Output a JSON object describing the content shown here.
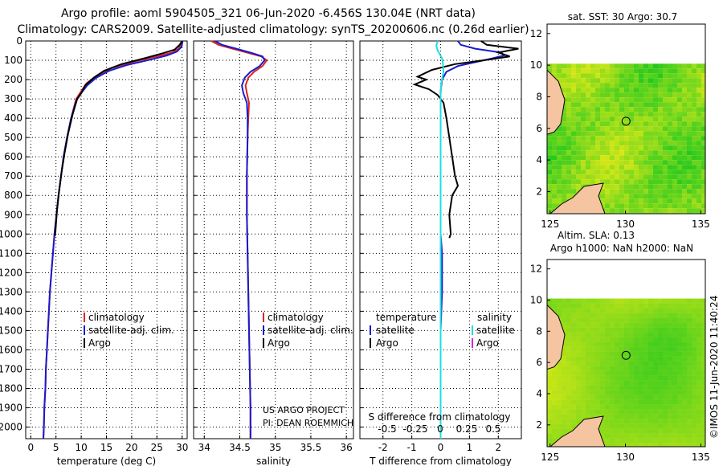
{
  "header": {
    "line1": "Argo profile: aoml 5904505_321 06-Jun-2020 -6.456S 130.04E (NRT data)",
    "line2": "Climatology: CARS2009. Satellite-adjusted climatology: synTS_20200606.nc (0.26d earlier)"
  },
  "colors": {
    "climatology": "#dd2222",
    "satellite": "#1a1acc",
    "argo": "#000000",
    "sat_salinity": "#22dddd",
    "argo_salinity": "#dd22dd",
    "land": "#f5c4a0",
    "ocean_low": "#22c81e",
    "ocean_high": "#f0ec1e"
  },
  "watermark": "©IMOS 11-Jun-2020 11:40:24",
  "chart_data": [
    {
      "type": "line",
      "id": "temperature",
      "xlabel": "temperature (deg C)",
      "ylabel": "depth",
      "xlim": [
        -1,
        31
      ],
      "ylim": [
        2060,
        0
      ],
      "xticks": [
        0,
        5,
        10,
        15,
        20,
        25,
        30
      ],
      "yticks": [
        0,
        100,
        200,
        300,
        400,
        500,
        600,
        700,
        800,
        900,
        1000,
        1100,
        1200,
        1300,
        1400,
        1500,
        1600,
        1700,
        1800,
        1900,
        2000
      ],
      "legend": [
        "climatology",
        "satellite-adj. clim.",
        "Argo"
      ],
      "series": [
        {
          "name": "climatology",
          "color": "#dd2222",
          "points": [
            [
              29.9,
              0
            ],
            [
              29.7,
              20
            ],
            [
              29.3,
              40
            ],
            [
              28,
              60
            ],
            [
              25,
              80
            ],
            [
              20,
              110
            ],
            [
              16,
              140
            ],
            [
              13,
              180
            ],
            [
              11,
              220
            ],
            [
              10,
              260
            ],
            [
              9,
              300
            ],
            [
              8,
              400
            ],
            [
              7.2,
              500
            ],
            [
              6.5,
              600
            ],
            [
              6,
              700
            ],
            [
              5.5,
              800
            ],
            [
              5.1,
              900
            ],
            [
              4.7,
              1000
            ],
            [
              4.4,
              1100
            ],
            [
              4.1,
              1200
            ],
            [
              3.8,
              1300
            ],
            [
              3.6,
              1400
            ],
            [
              3.4,
              1500
            ],
            [
              3.2,
              1600
            ],
            [
              3,
              1700
            ],
            [
              2.9,
              1800
            ],
            [
              2.7,
              1900
            ],
            [
              2.6,
              2000
            ],
            [
              2.5,
              2060
            ]
          ]
        },
        {
          "name": "satellite-adj. clim.",
          "color": "#1a1acc",
          "points": [
            [
              30.1,
              0
            ],
            [
              29.9,
              30
            ],
            [
              29,
              55
            ],
            [
              27,
              75
            ],
            [
              24,
              95
            ],
            [
              19,
              125
            ],
            [
              15.5,
              155
            ],
            [
              13,
              190
            ],
            [
              11.2,
              230
            ],
            [
              10,
              270
            ],
            [
              9,
              310
            ],
            [
              8,
              400
            ],
            [
              7.2,
              500
            ],
            [
              6.5,
              600
            ],
            [
              6,
              700
            ],
            [
              5.5,
              800
            ],
            [
              5.1,
              900
            ],
            [
              4.7,
              1000
            ],
            [
              4.4,
              1100
            ],
            [
              4.1,
              1200
            ],
            [
              3.8,
              1300
            ],
            [
              3.6,
              1400
            ],
            [
              3.4,
              1500
            ],
            [
              3.2,
              1600
            ],
            [
              3,
              1700
            ],
            [
              2.9,
              1800
            ],
            [
              2.7,
              1900
            ],
            [
              2.6,
              2000
            ],
            [
              2.5,
              2060
            ]
          ]
        },
        {
          "name": "Argo",
          "color": "#000000",
          "points": [
            [
              30,
              0
            ],
            [
              29.5,
              20
            ],
            [
              28.5,
              45
            ],
            [
              26,
              65
            ],
            [
              22.5,
              90
            ],
            [
              18,
              120
            ],
            [
              14.5,
              155
            ],
            [
              12.5,
              190
            ],
            [
              10.8,
              230
            ],
            [
              10,
              270
            ],
            [
              9.2,
              300
            ],
            [
              8.3,
              380
            ],
            [
              7.4,
              480
            ],
            [
              6.7,
              580
            ],
            [
              6.1,
              680
            ],
            [
              5.6,
              780
            ],
            [
              5.2,
              880
            ],
            [
              4.9,
              980
            ],
            [
              4.8,
              1010
            ]
          ]
        }
      ]
    },
    {
      "type": "line",
      "id": "salinity",
      "xlabel": "salinity",
      "xlim": [
        33.85,
        36.1
      ],
      "ylim": [
        2060,
        0
      ],
      "xticks": [
        34,
        34.5,
        35,
        35.5,
        36
      ],
      "legend": [
        "climatology",
        "satellite-adj. clim.",
        "Argo"
      ],
      "annotations": [
        "US ARGO PROJECT",
        "PI: DEAN ROEMMICH"
      ],
      "series": [
        {
          "name": "climatology",
          "color": "#dd2222",
          "points": [
            [
              34.1,
              0
            ],
            [
              34.2,
              20
            ],
            [
              34.4,
              40
            ],
            [
              34.6,
              60
            ],
            [
              34.8,
              80
            ],
            [
              34.88,
              100
            ],
            [
              34.82,
              130
            ],
            [
              34.7,
              160
            ],
            [
              34.62,
              190
            ],
            [
              34.58,
              230
            ],
            [
              34.6,
              270
            ],
            [
              34.63,
              320
            ],
            [
              34.62,
              400
            ],
            [
              34.61,
              500
            ],
            [
              34.6,
              700
            ],
            [
              34.6,
              900
            ],
            [
              34.61,
              1100
            ],
            [
              34.62,
              1300
            ],
            [
              34.63,
              1500
            ],
            [
              34.64,
              1700
            ],
            [
              34.65,
              1900
            ],
            [
              34.65,
              2060
            ]
          ]
        },
        {
          "name": "satellite-adj. clim.",
          "color": "#1a1acc",
          "points": [
            [
              34.15,
              0
            ],
            [
              34.25,
              20
            ],
            [
              34.45,
              40
            ],
            [
              34.65,
              60
            ],
            [
              34.82,
              80
            ],
            [
              34.85,
              100
            ],
            [
              34.78,
              130
            ],
            [
              34.65,
              160
            ],
            [
              34.57,
              190
            ],
            [
              34.53,
              230
            ],
            [
              34.55,
              270
            ],
            [
              34.6,
              320
            ],
            [
              34.61,
              400
            ],
            [
              34.61,
              500
            ],
            [
              34.6,
              700
            ],
            [
              34.6,
              900
            ],
            [
              34.61,
              1100
            ],
            [
              34.62,
              1300
            ],
            [
              34.63,
              1500
            ],
            [
              34.64,
              1700
            ],
            [
              34.65,
              1900
            ],
            [
              34.65,
              2060
            ]
          ]
        }
      ]
    },
    {
      "type": "line",
      "id": "difference",
      "xlabel": "T difference from climatology",
      "xlim": [
        -2.8,
        2.8
      ],
      "ylim": [
        2060,
        0
      ],
      "xticks": [
        -2,
        -1,
        0,
        1,
        2
      ],
      "secondary_xlabel": "S difference from climatology",
      "secondary_xticks": [
        "-0.5",
        "-0.25",
        "0",
        "0.25",
        "0.5"
      ],
      "legend": {
        "temperature": [
          "satellite",
          "Argo"
        ],
        "salinity": [
          "satellite",
          "Argo"
        ]
      },
      "series": [
        {
          "name": "T satellite",
          "color": "#1a1acc",
          "points": [
            [
              0.6,
              0
            ],
            [
              0.7,
              20
            ],
            [
              1.2,
              40
            ],
            [
              2.1,
              60
            ],
            [
              2.2,
              75
            ],
            [
              1.8,
              90
            ],
            [
              1.2,
              110
            ],
            [
              0.6,
              130
            ],
            [
              0.2,
              160
            ],
            [
              0.05,
              200
            ],
            [
              0,
              260
            ],
            [
              0,
              400
            ],
            [
              0,
              800
            ],
            [
              0,
              1000
            ],
            [
              0.05,
              1100
            ],
            [
              0.05,
              1300
            ],
            [
              0,
              1500
            ],
            [
              0,
              2060
            ]
          ]
        },
        {
          "name": "T Argo",
          "color": "#000000",
          "points": [
            [
              1.4,
              0
            ],
            [
              1.6,
              20
            ],
            [
              2.7,
              40
            ],
            [
              2.0,
              60
            ],
            [
              2.4,
              80
            ],
            [
              1.5,
              100
            ],
            [
              0.5,
              120
            ],
            [
              -0.3,
              150
            ],
            [
              -0.8,
              185
            ],
            [
              -0.5,
              200
            ],
            [
              -0.9,
              225
            ],
            [
              -0.4,
              250
            ],
            [
              -0.1,
              280
            ],
            [
              0.1,
              320
            ],
            [
              0.2,
              400
            ],
            [
              0.3,
              500
            ],
            [
              0.4,
              600
            ],
            [
              0.5,
              700
            ],
            [
              0.6,
              750
            ],
            [
              0.4,
              800
            ],
            [
              0.3,
              900
            ],
            [
              0.35,
              1000
            ],
            [
              0.3,
              1020
            ]
          ]
        },
        {
          "name": "S satellite",
          "color": "#22dddd",
          "points": [
            [
              -0.1,
              0
            ],
            [
              -0.15,
              25
            ],
            [
              -0.1,
              50
            ],
            [
              0.05,
              90
            ],
            [
              0.08,
              120
            ],
            [
              0.1,
              160
            ],
            [
              0.02,
              220
            ],
            [
              0,
              280
            ],
            [
              0,
              400
            ],
            [
              0,
              1000
            ],
            [
              0,
              1500
            ],
            [
              0,
              2060
            ]
          ]
        }
      ]
    },
    {
      "type": "heatmap",
      "id": "sst-map",
      "title": "sat. SST: 30 Argo: 30.7",
      "xlim": [
        124.8,
        135.3
      ],
      "ylim": [
        0.6,
        12.6
      ],
      "xticks": [
        125,
        130,
        135
      ],
      "yticks": [
        2,
        4,
        6,
        8,
        10,
        12
      ],
      "data_top": 10.1,
      "argo_position": [
        130.04,
        6.456
      ]
    },
    {
      "type": "heatmap",
      "id": "sla-map",
      "title1": "Altim. SLA: 0.13",
      "title2": "Argo h1000: NaN h2000: NaN",
      "xlim": [
        124.8,
        135.3
      ],
      "ylim": [
        0.6,
        12.6
      ],
      "xticks": [
        125,
        130,
        135
      ],
      "yticks": [
        2,
        4,
        6,
        8,
        10,
        12
      ],
      "data_top": 10.1,
      "argo_position": [
        130.04,
        6.456
      ]
    }
  ]
}
